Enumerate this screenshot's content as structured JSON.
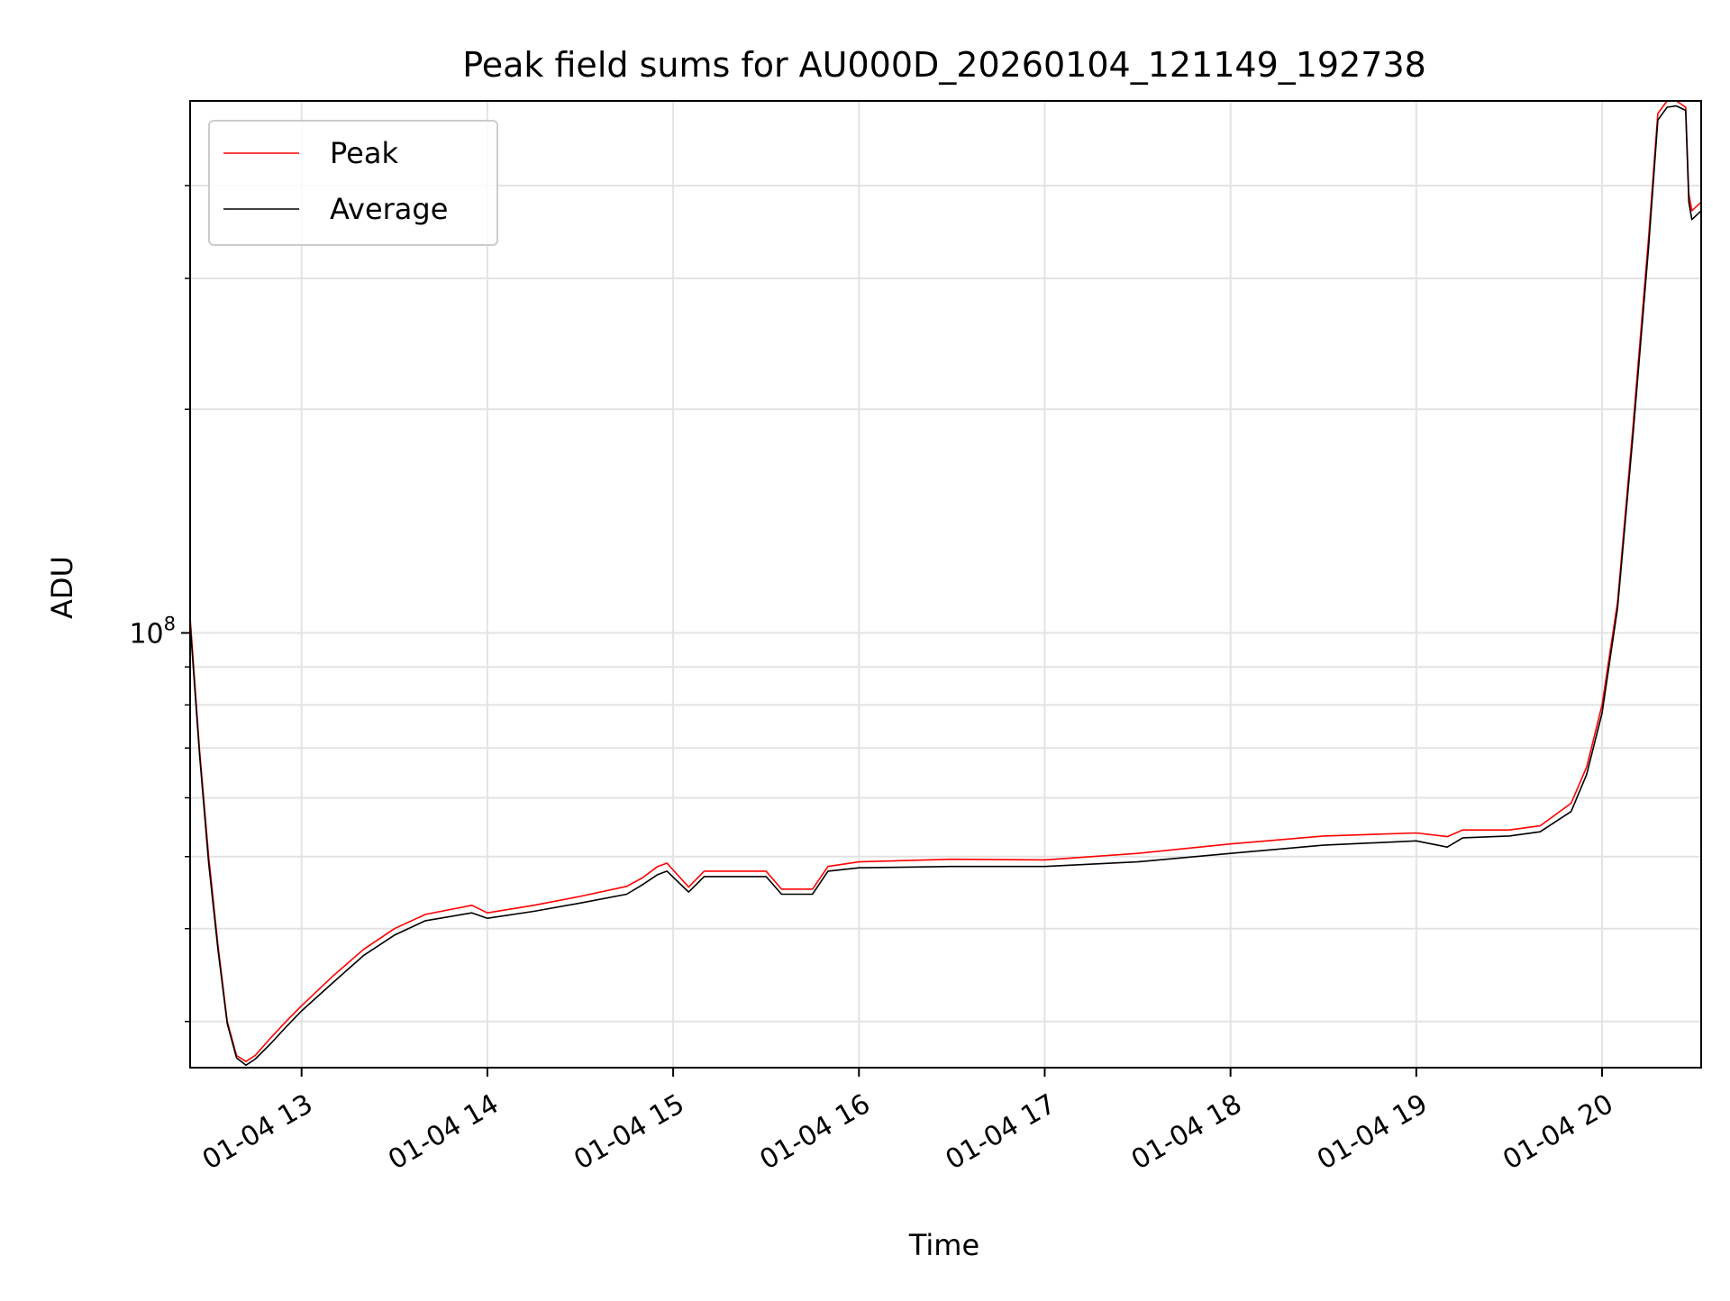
{
  "chart_data": {
    "type": "line",
    "title": "Peak field sums for AU000D_20260104_121149_192738",
    "xlabel": "Time",
    "ylabel": "ADU",
    "yscale": "log",
    "grid": true,
    "legend_placement": "top-left",
    "xlim": [
      "2026-01-04 12:24",
      "2026-01-04 20:32"
    ],
    "ylim": [
      26000000,
      520000000
    ],
    "x_ticks": [
      {
        "x": "2026-01-04 13:00",
        "label": "01-04 13"
      },
      {
        "x": "2026-01-04 14:00",
        "label": "01-04 14"
      },
      {
        "x": "2026-01-04 15:00",
        "label": "01-04 15"
      },
      {
        "x": "2026-01-04 16:00",
        "label": "01-04 16"
      },
      {
        "x": "2026-01-04 17:00",
        "label": "01-04 17"
      },
      {
        "x": "2026-01-04 18:00",
        "label": "01-04 18"
      },
      {
        "x": "2026-01-04 19:00",
        "label": "01-04 19"
      },
      {
        "x": "2026-01-04 20:00",
        "label": "01-04 20"
      }
    ],
    "y_major_ticks": [
      {
        "y": 100000000,
        "label_base": "10",
        "label_exp": "8"
      }
    ],
    "y_minor_ticks": [
      30000000,
      40000000,
      50000000,
      60000000,
      70000000,
      80000000,
      90000000,
      200000000,
      300000000,
      400000000
    ],
    "series": [
      {
        "name": "Peak",
        "color": "#ff0000",
        "x": [
          "2026-01-04 12:24",
          "2026-01-04 12:27",
          "2026-01-04 12:30",
          "2026-01-04 12:33",
          "2026-01-04 12:36",
          "2026-01-04 12:39",
          "2026-01-04 12:42",
          "2026-01-04 12:45",
          "2026-01-04 12:50",
          "2026-01-04 12:55",
          "2026-01-04 13:00",
          "2026-01-04 13:10",
          "2026-01-04 13:20",
          "2026-01-04 13:30",
          "2026-01-04 13:40",
          "2026-01-04 13:55",
          "2026-01-04 14:00",
          "2026-01-04 14:15",
          "2026-01-04 14:30",
          "2026-01-04 14:45",
          "2026-01-04 14:50",
          "2026-01-04 14:55",
          "2026-01-04 14:58",
          "2026-01-04 15:05",
          "2026-01-04 15:10",
          "2026-01-04 15:30",
          "2026-01-04 15:35",
          "2026-01-04 15:45",
          "2026-01-04 15:50",
          "2026-01-04 16:00",
          "2026-01-04 16:30",
          "2026-01-04 17:00",
          "2026-01-04 17:30",
          "2026-01-04 18:00",
          "2026-01-04 18:30",
          "2026-01-04 19:00",
          "2026-01-04 19:10",
          "2026-01-04 19:15",
          "2026-01-04 19:30",
          "2026-01-04 19:40",
          "2026-01-04 19:50",
          "2026-01-04 19:55",
          "2026-01-04 20:00",
          "2026-01-04 20:05",
          "2026-01-04 20:10",
          "2026-01-04 20:15",
          "2026-01-04 20:18",
          "2026-01-04 20:21",
          "2026-01-04 20:24",
          "2026-01-04 20:27",
          "2026-01-04 20:28",
          "2026-01-04 20:29",
          "2026-01-04 20:32"
        ],
        "y": [
          105000000,
          70000000,
          50000000,
          38000000,
          30000000,
          27000000,
          26500000,
          27000000,
          28500000,
          30000000,
          31500000,
          34500000,
          37500000,
          40000000,
          41800000,
          43000000,
          42000000,
          43000000,
          44200000,
          45600000,
          46800000,
          48500000,
          49000000,
          45500000,
          47800000,
          47800000,
          45200000,
          45200000,
          48500000,
          49200000,
          49600000,
          49500000,
          50500000,
          52000000,
          53300000,
          53800000,
          53200000,
          54300000,
          54300000,
          55000000,
          59000000,
          66000000,
          80000000,
          110000000,
          190000000,
          340000000,
          500000000,
          520000000,
          520000000,
          510000000,
          390000000,
          370000000,
          380000000
        ]
      },
      {
        "name": "Average",
        "color": "#000000",
        "x": [
          "2026-01-04 12:24",
          "2026-01-04 12:27",
          "2026-01-04 12:30",
          "2026-01-04 12:33",
          "2026-01-04 12:36",
          "2026-01-04 12:39",
          "2026-01-04 12:42",
          "2026-01-04 12:45",
          "2026-01-04 12:50",
          "2026-01-04 12:55",
          "2026-01-04 13:00",
          "2026-01-04 13:10",
          "2026-01-04 13:20",
          "2026-01-04 13:30",
          "2026-01-04 13:40",
          "2026-01-04 13:55",
          "2026-01-04 14:00",
          "2026-01-04 14:15",
          "2026-01-04 14:30",
          "2026-01-04 14:45",
          "2026-01-04 14:50",
          "2026-01-04 14:55",
          "2026-01-04 14:58",
          "2026-01-04 15:05",
          "2026-01-04 15:10",
          "2026-01-04 15:30",
          "2026-01-04 15:35",
          "2026-01-04 15:45",
          "2026-01-04 15:50",
          "2026-01-04 16:00",
          "2026-01-04 16:30",
          "2026-01-04 17:00",
          "2026-01-04 17:30",
          "2026-01-04 18:00",
          "2026-01-04 18:30",
          "2026-01-04 19:00",
          "2026-01-04 19:10",
          "2026-01-04 19:15",
          "2026-01-04 19:30",
          "2026-01-04 19:40",
          "2026-01-04 19:50",
          "2026-01-04 19:55",
          "2026-01-04 20:00",
          "2026-01-04 20:05",
          "2026-01-04 20:10",
          "2026-01-04 20:15",
          "2026-01-04 20:18",
          "2026-01-04 20:21",
          "2026-01-04 20:24",
          "2026-01-04 20:27",
          "2026-01-04 20:28",
          "2026-01-04 20:29",
          "2026-01-04 20:32"
        ],
        "y": [
          103000000,
          69000000,
          49000000,
          37500000,
          29800000,
          26800000,
          26200000,
          26700000,
          28000000,
          29500000,
          31000000,
          33800000,
          36800000,
          39200000,
          41000000,
          42000000,
          41300000,
          42200000,
          43300000,
          44500000,
          45800000,
          47300000,
          47800000,
          44800000,
          47000000,
          47000000,
          44500000,
          44500000,
          47800000,
          48300000,
          48500000,
          48500000,
          49200000,
          50500000,
          51800000,
          52500000,
          51500000,
          53000000,
          53300000,
          54000000,
          57500000,
          64500000,
          78000000,
          108000000,
          185000000,
          330000000,
          490000000,
          510000000,
          512000000,
          505000000,
          380000000,
          360000000,
          370000000
        ]
      }
    ]
  }
}
